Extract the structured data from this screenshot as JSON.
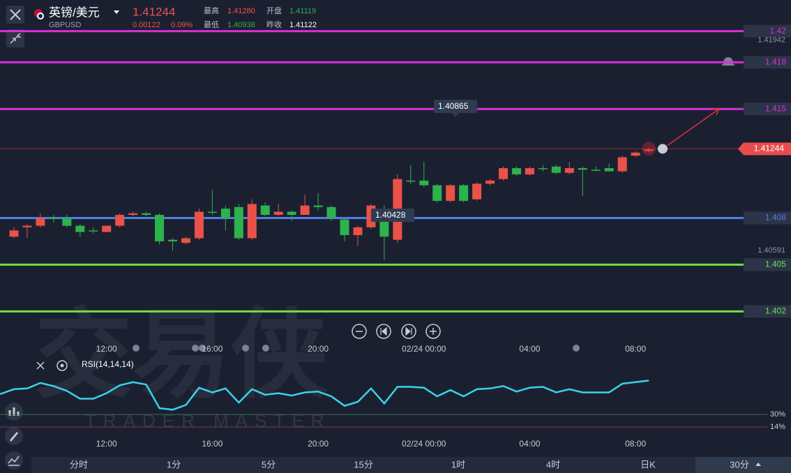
{
  "header": {
    "name": "英镑/美元",
    "symbol": "GBPUSD",
    "price": "1.41244",
    "change": "0.00122",
    "change_pct": "0.09%",
    "stats": [
      {
        "label": "最高",
        "value": "1.41280"
      },
      {
        "label": "开盘",
        "value": "1.41119"
      },
      {
        "label": "最低",
        "value": "1.40938"
      },
      {
        "label": "昨收",
        "value": "1.41122"
      }
    ]
  },
  "watermark": {
    "title": "交易侠",
    "subtitle": "TRADER MASTER"
  },
  "tabs": [
    "分时",
    "1分",
    "5分",
    "15分",
    "1时",
    "4时",
    "日K",
    "30分"
  ],
  "chart_data": [
    {
      "type": "candlestick",
      "categories": [
        null,
        null,
        null,
        null,
        null,
        null,
        null,
        "12:00",
        null,
        null,
        null,
        null,
        null,
        null,
        null,
        "16:00",
        null,
        null,
        null,
        null,
        null,
        null,
        null,
        "20:00",
        null,
        null,
        null,
        null,
        null,
        null,
        null,
        "02/24 00:00",
        null,
        null,
        null,
        null,
        null,
        null,
        null,
        "04:00",
        null,
        null,
        null,
        null,
        null,
        null,
        null,
        "08:00",
        null
      ],
      "open": [
        1.4068,
        1.4074,
        1.4075,
        1.408,
        1.408,
        1.4075,
        1.4072,
        1.4071,
        1.4075,
        1.4082,
        1.4083,
        1.4082,
        1.4066,
        1.4064,
        1.4067,
        1.4084,
        1.4086,
        1.4087,
        1.4067,
        1.4088,
        1.4082,
        1.4084,
        1.4082,
        1.4088,
        1.4087,
        1.4079,
        1.4069,
        1.4074,
        1.4086,
        1.4066,
        1.4104,
        1.4104,
        1.4101,
        1.4091,
        1.4101,
        1.4092,
        1.4102,
        1.4105,
        1.4112,
        1.4108,
        1.4112,
        1.4113,
        1.4109,
        1.4112,
        1.4111,
        1.4112,
        1.411,
        1.412,
        1.4123
      ],
      "high": [
        1.4074,
        1.4076,
        1.4083,
        1.4082,
        1.4082,
        1.4076,
        1.4074,
        1.4075,
        1.4083,
        1.4084,
        1.4084,
        1.4083,
        1.4067,
        1.4068,
        1.4086,
        1.4098,
        1.4088,
        1.4089,
        1.4092,
        1.409,
        1.4089,
        1.4085,
        1.4095,
        1.4096,
        1.4088,
        1.408,
        1.4075,
        1.4089,
        1.4088,
        1.4108,
        1.4114,
        1.4116,
        1.4102,
        1.4102,
        1.4102,
        1.4103,
        1.4105,
        1.4113,
        1.4113,
        1.4113,
        1.4114,
        1.4114,
        1.4116,
        1.4113,
        1.4113,
        1.4115,
        1.412,
        1.4123,
        1.4125
      ],
      "low": [
        1.4067,
        1.4067,
        1.4074,
        1.4077,
        1.4074,
        1.4068,
        1.407,
        1.4071,
        1.4074,
        1.4081,
        1.4081,
        1.4063,
        1.4059,
        1.4063,
        1.4066,
        1.4082,
        1.4072,
        1.4066,
        1.4066,
        1.4081,
        1.4081,
        1.4078,
        1.4082,
        1.4085,
        1.4078,
        1.4065,
        1.4062,
        1.4073,
        1.4053,
        1.4064,
        1.4102,
        1.41,
        1.409,
        1.409,
        1.409,
        1.4091,
        1.4101,
        1.4104,
        1.4107,
        1.4107,
        1.411,
        1.4108,
        1.4108,
        1.4094,
        1.411,
        1.411,
        1.4109,
        1.4119,
        1.4122
      ],
      "close": [
        1.4072,
        1.4075,
        1.408,
        1.408,
        1.4075,
        1.4071,
        1.4072,
        1.4075,
        1.4082,
        1.4083,
        1.4082,
        1.4065,
        1.4065,
        1.4067,
        1.4084,
        1.4084,
        1.408,
        1.4067,
        1.4089,
        1.4082,
        1.4084,
        1.4082,
        1.4088,
        1.4087,
        1.408,
        1.4069,
        1.4074,
        1.4088,
        1.4068,
        1.4105,
        1.4104,
        1.4101,
        1.4091,
        1.4101,
        1.4091,
        1.4102,
        1.4104,
        1.4112,
        1.4108,
        1.4112,
        1.4112,
        1.4109,
        1.4112,
        1.4111,
        1.4111,
        1.411,
        1.4119,
        1.4122,
        1.4124
      ],
      "ylim": [
        1.4,
        1.422
      ],
      "up_color": "#ea5149",
      "down_color": "#2eb24b",
      "levels": [
        {
          "value": 1.42,
          "color": "#d92ed9"
        },
        {
          "value": 1.418,
          "color": "#d92ed9"
        },
        {
          "value": 1.415,
          "color": "#d92ed9"
        },
        {
          "value": 1.408,
          "color": "#4d7fe6"
        },
        {
          "value": 1.405,
          "color": "#6ee04a"
        },
        {
          "value": 1.402,
          "color": "#6ee04a"
        }
      ],
      "extremes": [
        1.41942,
        1.40591
      ],
      "last_price": 1.41244,
      "markers": [
        1.40865,
        1.40428
      ]
    },
    {
      "type": "line",
      "label": "RSI(14,14,14)",
      "categories": [
        null,
        null,
        null,
        null,
        null,
        null,
        null,
        "12:00",
        null,
        null,
        null,
        null,
        null,
        null,
        null,
        "16:00",
        null,
        null,
        null,
        null,
        null,
        null,
        null,
        "20:00",
        null,
        null,
        null,
        null,
        null,
        null,
        null,
        "02/24 00:00",
        null,
        null,
        null,
        null,
        null,
        null,
        null,
        "04:00",
        null,
        null,
        null,
        null,
        null,
        null,
        null,
        "08:00",
        null
      ],
      "values": [
        62,
        63,
        70,
        66,
        60,
        50,
        50,
        57,
        67,
        71,
        68,
        38,
        36,
        42,
        64,
        58,
        63,
        45,
        62,
        55,
        57,
        54,
        58,
        59,
        53,
        41,
        46,
        63,
        44,
        65,
        65,
        64,
        53,
        61,
        53,
        62,
        63,
        66,
        59,
        64,
        65,
        58,
        62,
        58,
        58,
        58,
        69,
        71,
        73
      ],
      "color": "#38d4ea",
      "ylim": [
        0,
        100
      ],
      "yticks": [
        {
          "value": 30,
          "label": "30%"
        },
        {
          "value": 14,
          "label": "14%"
        }
      ]
    }
  ]
}
